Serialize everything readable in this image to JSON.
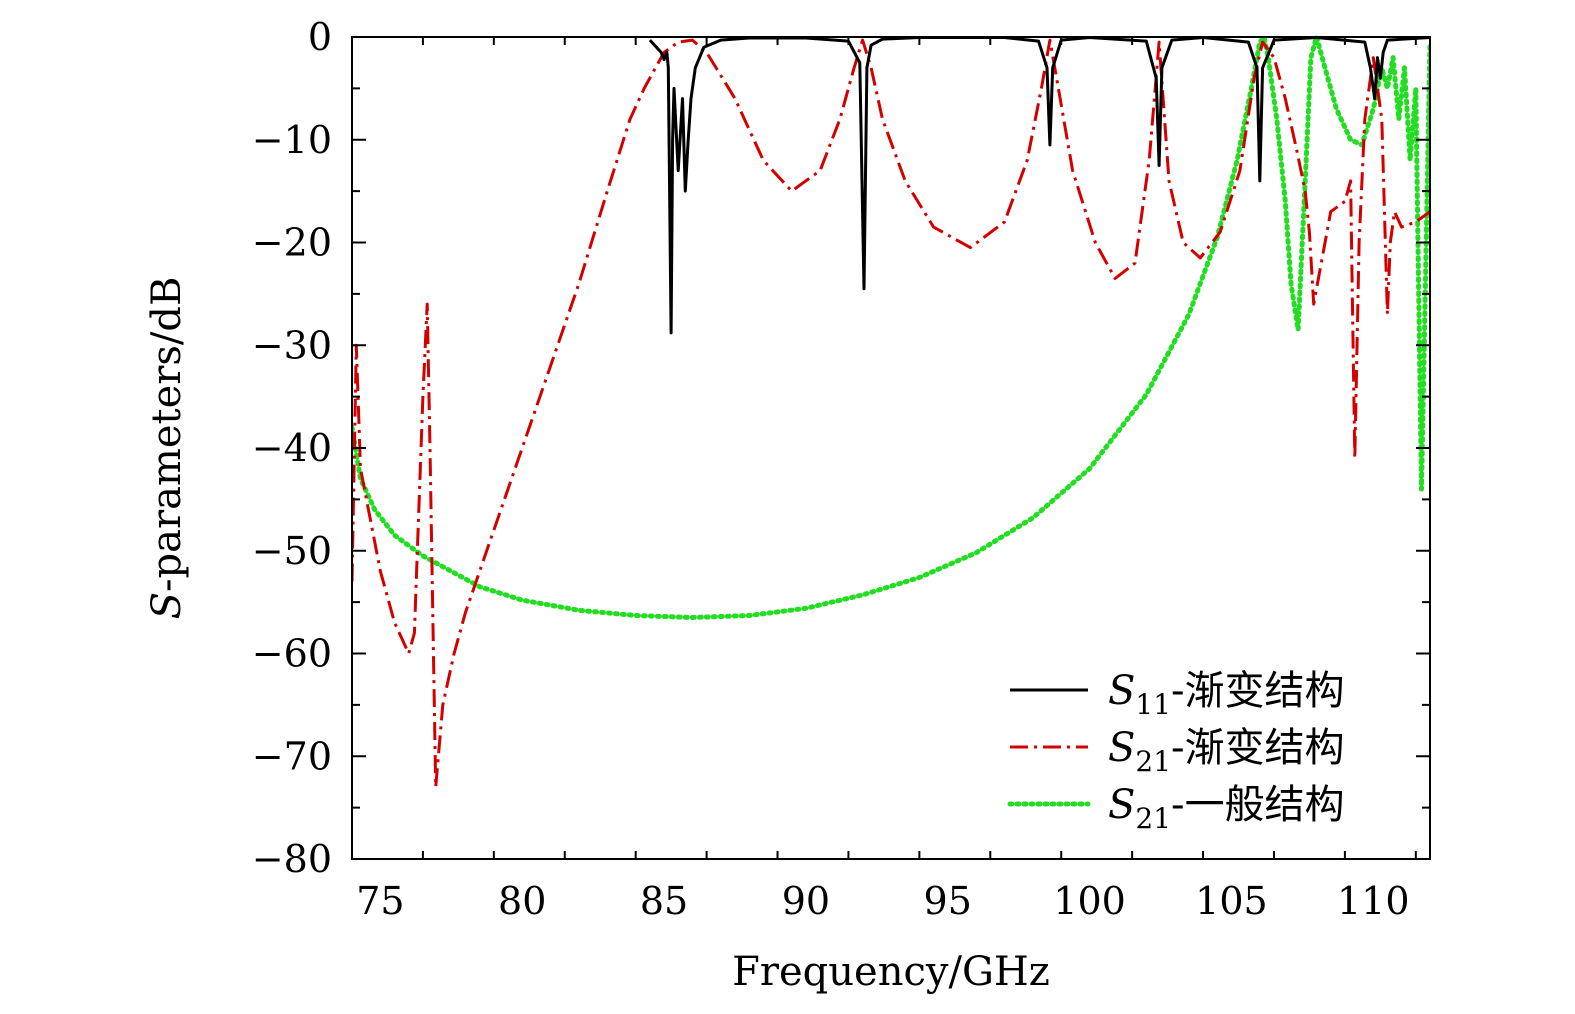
{
  "chart_data": {
    "type": "line",
    "xlabel": "Frequency/GHz",
    "ylabel": "S-parameters/dB",
    "ylabel_italic_prefix": "S",
    "ylabel_rest": "-parameters/dB",
    "xlim": [
      74,
      112
    ],
    "ylim": [
      -80,
      0
    ],
    "x_ticks": [
      75,
      80,
      85,
      90,
      95,
      100,
      105,
      110
    ],
    "y_ticks": [
      0,
      -10,
      -20,
      -30,
      -40,
      -50,
      -60,
      -70,
      -80
    ],
    "x_tick_labels": [
      "75",
      "80",
      "85",
      "90",
      "95",
      "100",
      "105",
      "110"
    ],
    "y_tick_labels": [
      "0",
      "−10",
      "−20",
      "−30",
      "−40",
      "−50",
      "−60",
      "−70",
      "−80"
    ],
    "grid": false,
    "legend_position": "bottom-right",
    "series": [
      {
        "name": "S11-渐变结构",
        "legend_symbol": "S",
        "legend_subscript": "11",
        "legend_suffix": "-渐变结构",
        "color": "#000000",
        "style": "solid",
        "x": [
          84.5,
          84.9,
          85.0,
          85.1,
          85.15,
          85.25,
          85.3,
          85.35,
          85.5,
          85.65,
          85.75,
          85.85,
          85.95,
          86.1,
          86.4,
          87.0,
          88.0,
          90.0,
          91.5,
          91.9,
          92.05,
          92.15,
          92.3,
          92.7,
          94.0,
          97.0,
          98.2,
          98.5,
          98.6,
          98.7,
          99.0,
          100.0,
          102.0,
          102.35,
          102.45,
          102.55,
          102.9,
          104.0,
          105.6,
          105.9,
          106.0,
          106.1,
          106.5,
          108.0,
          109.7,
          109.9,
          110.05,
          110.15,
          110.25,
          110.35,
          110.5,
          112.0
        ],
        "y": [
          -0.3,
          -1.5,
          -2.2,
          -1.5,
          -3,
          -28.8,
          -10,
          -5,
          -13,
          -6,
          -15,
          -10,
          -6,
          -3,
          -1,
          -0.3,
          -0.1,
          -0.1,
          -0.4,
          -2.5,
          -24.5,
          -3,
          -0.8,
          -0.2,
          -0.05,
          -0.05,
          -0.4,
          -3,
          -10.5,
          -3,
          -0.3,
          -0.05,
          -0.4,
          -4,
          -12.5,
          -3,
          -0.3,
          -0.05,
          -0.5,
          -3,
          -14,
          -3,
          -0.3,
          -0.05,
          -0.5,
          -3,
          -6,
          -2,
          -4,
          -1.5,
          -0.3,
          -0.05
        ]
      },
      {
        "name": "S21-渐变结构",
        "legend_symbol": "S",
        "legend_subscript": "21",
        "legend_suffix": "-渐变结构",
        "color": "#d40000",
        "style": "dashdot",
        "x": [
          74.0,
          74.15,
          74.3,
          75.0,
          75.5,
          76.0,
          76.2,
          76.5,
          76.65,
          76.75,
          76.95,
          77.2,
          77.6,
          78.0,
          79.0,
          80.0,
          81.0,
          82.0,
          83.0,
          83.8,
          84.3,
          84.7,
          85.0,
          85.5,
          86.0,
          86.5,
          87.5,
          88.5,
          89.5,
          90.5,
          91.2,
          91.7,
          92.0,
          92.3,
          92.7,
          93.5,
          94.5,
          95.8,
          97.0,
          97.8,
          98.3,
          98.6,
          98.9,
          99.4,
          100.2,
          100.9,
          101.6,
          102.1,
          102.45,
          102.8,
          103.3,
          103.9,
          104.6,
          105.3,
          105.8,
          106.1,
          106.5,
          106.9,
          107.3,
          107.6,
          107.75,
          107.9,
          108.5,
          109.0,
          109.2,
          109.35,
          109.5,
          109.7,
          110.0,
          110.3,
          110.5,
          110.6,
          110.75,
          111.0,
          111.5,
          112.0
        ],
        "y": [
          -53,
          -30,
          -42,
          -52,
          -57,
          -60,
          -58,
          -35,
          -26,
          -40,
          -73,
          -65,
          -60,
          -56,
          -48,
          -40,
          -32,
          -24,
          -15,
          -8,
          -5,
          -3,
          -1.5,
          -0.5,
          -0.3,
          -1.5,
          -6,
          -12,
          -15,
          -13,
          -8,
          -3,
          -0.3,
          -3,
          -8,
          -14,
          -18.5,
          -20.5,
          -18,
          -12,
          -5,
          -0.3,
          -5,
          -13,
          -20,
          -23.5,
          -22,
          -12,
          -0.5,
          -14,
          -20,
          -21.5,
          -19,
          -13,
          -4,
          -0.5,
          -2,
          -6,
          -11,
          -15,
          -19,
          -26,
          -17,
          -16,
          -14,
          -41,
          -20,
          -8,
          -2,
          -8,
          -27,
          -20,
          -17,
          -18.5,
          -18,
          -17
        ]
      },
      {
        "name": "S21-一般结构",
        "legend_symbol": "S",
        "legend_subscript": "21",
        "legend_suffix": "-一般结构",
        "color": "#22dd22",
        "style": "dotted",
        "x": [
          74.0,
          74.3,
          74.8,
          75.5,
          76.5,
          77.5,
          78.5,
          80.0,
          82.0,
          84.0,
          86.0,
          88.0,
          90.0,
          92.0,
          94.0,
          96.0,
          98.0,
          100.0,
          102.0,
          103.5,
          104.5,
          105.2,
          105.7,
          106.0,
          106.15,
          106.3,
          106.6,
          106.9,
          107.1,
          107.35,
          107.6,
          107.8,
          108.0,
          108.3,
          108.7,
          109.2,
          109.6,
          110.0,
          110.3,
          110.5,
          110.7,
          110.9,
          111.1,
          111.3,
          111.5,
          111.7,
          111.9,
          112.0
        ],
        "y": [
          -38,
          -43,
          -46,
          -48.5,
          -50.5,
          -52,
          -53.5,
          -54.8,
          -55.8,
          -56.3,
          -56.5,
          -56.3,
          -55.6,
          -54.3,
          -52.6,
          -50.2,
          -46.8,
          -42,
          -34.8,
          -27,
          -19.5,
          -12,
          -5,
          -0.5,
          0,
          -2,
          -8,
          -16,
          -24,
          -28.5,
          -14,
          -2,
          0,
          -3,
          -7,
          -10,
          -10.5,
          -7,
          -3,
          -5,
          -2,
          -8,
          -3,
          -12,
          -5,
          -44,
          -15,
          -0.5
        ]
      }
    ]
  }
}
